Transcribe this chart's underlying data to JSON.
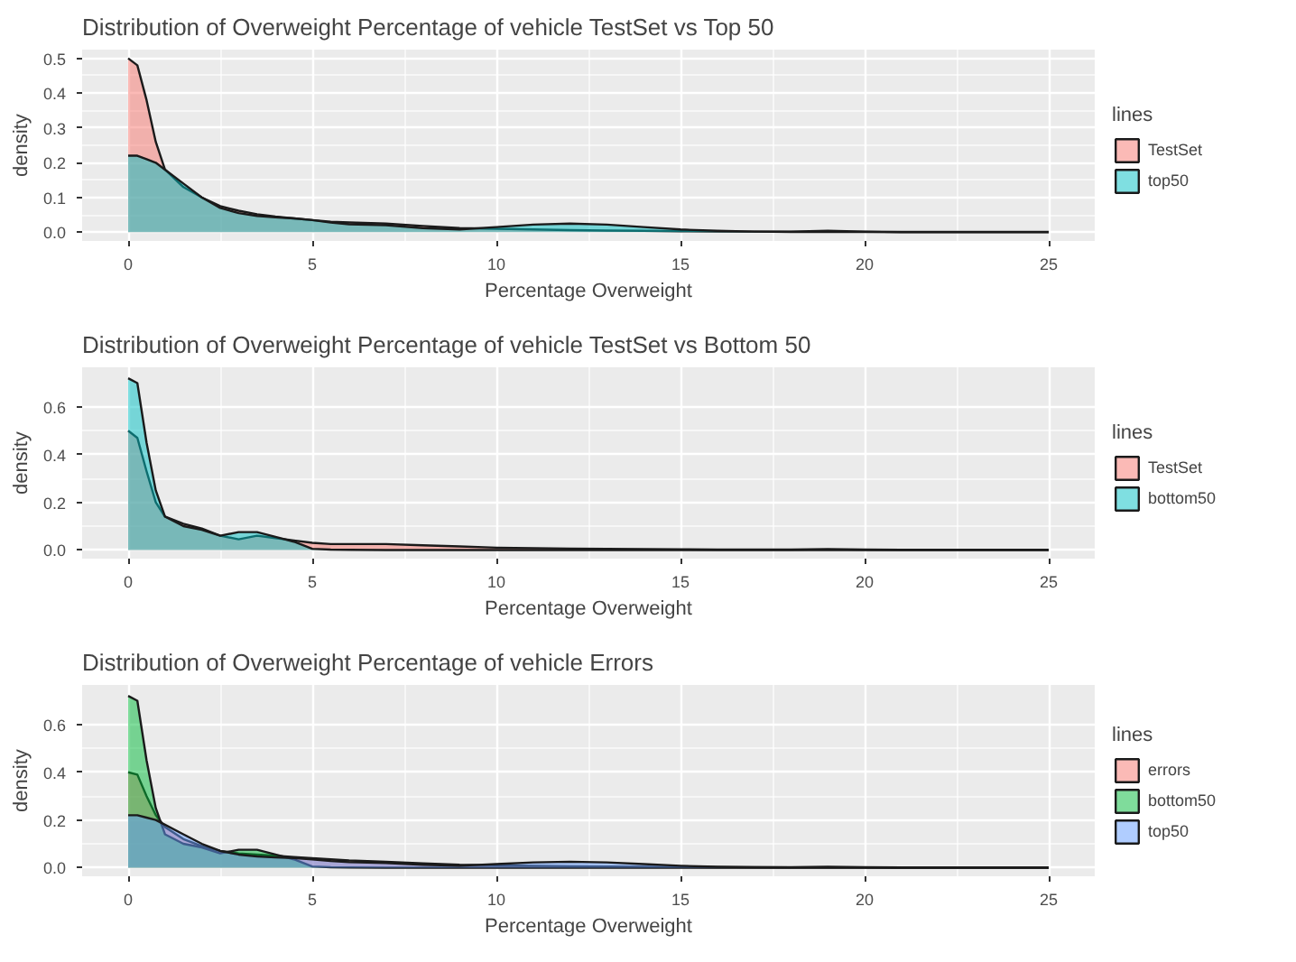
{
  "chart_data": [
    {
      "type": "area",
      "title": "Distribution of Overweight Percentage of vehicle TestSet vs Top 50",
      "xlabel": "Percentage Overweight",
      "ylabel": "density",
      "legend_title": "lines",
      "legend": "right",
      "grid": true,
      "x": [
        0,
        0.25,
        0.5,
        0.75,
        1,
        1.5,
        2,
        2.5,
        3,
        3.5,
        4,
        4.5,
        5,
        5.5,
        6,
        7,
        8,
        9,
        10,
        11,
        12,
        13,
        14,
        15,
        16,
        17,
        18,
        19,
        20,
        21,
        22,
        23,
        24,
        25
      ],
      "xlim": [
        -1.25,
        26.25
      ],
      "xticks": [
        0,
        5,
        10,
        15,
        20,
        25
      ],
      "ylim": [
        -0.025,
        0.525
      ],
      "yticks": [
        {
          "value": 0,
          "label": "0.0"
        },
        0.1,
        0.2,
        0.3,
        0.4,
        0.5
      ],
      "series": [
        {
          "name": "TestSet",
          "color": "#F8766D",
          "values": [
            0.5,
            0.48,
            0.38,
            0.26,
            0.18,
            0.13,
            0.1,
            0.075,
            0.062,
            0.052,
            0.045,
            0.04,
            0.035,
            0.03,
            0.028,
            0.025,
            0.018,
            0.012,
            0.01,
            0.008,
            0.006,
            0.005,
            0.004,
            0.003,
            0.002,
            0.002,
            0.002,
            0.004,
            0.002,
            0.001,
            0.001,
            0.001,
            0.001,
            0.001
          ]
        },
        {
          "name": "top50",
          "color": "#00BFC4",
          "values": [
            0.22,
            0.22,
            0.21,
            0.2,
            0.18,
            0.14,
            0.1,
            0.07,
            0.055,
            0.047,
            0.043,
            0.04,
            0.035,
            0.028,
            0.023,
            0.02,
            0.012,
            0.008,
            0.015,
            0.022,
            0.025,
            0.022,
            0.015,
            0.008,
            0.004,
            0.002,
            0.001,
            0.001,
            0.001,
            0,
            0,
            0,
            0,
            0
          ]
        }
      ]
    },
    {
      "type": "area",
      "title": "Distribution of Overweight Percentage of vehicle TestSet vs Bottom 50",
      "xlabel": "Percentage Overweight",
      "ylabel": "density",
      "legend_title": "lines",
      "legend": "right",
      "grid": true,
      "x": [
        0,
        0.25,
        0.5,
        0.75,
        1,
        1.5,
        2,
        2.5,
        3,
        3.5,
        4,
        4.5,
        5,
        5.5,
        6,
        7,
        8,
        9,
        10,
        11,
        12,
        13,
        14,
        15,
        16,
        17,
        18,
        19,
        20,
        21,
        22,
        23,
        24,
        25
      ],
      "xlim": [
        -1.25,
        26.25
      ],
      "xticks": [
        0,
        5,
        10,
        15,
        20,
        25
      ],
      "ylim": [
        -0.036,
        0.766
      ],
      "yticks": [
        {
          "value": 0,
          "label": "0.0"
        },
        {
          "value": 0.2,
          "label": "0.2"
        },
        {
          "value": 0.4,
          "label": "0.4"
        },
        {
          "value": 0.6,
          "label": "0.6"
        }
      ],
      "series": [
        {
          "name": "TestSet",
          "color": "#F8766D",
          "values": [
            0.5,
            0.47,
            0.33,
            0.2,
            0.14,
            0.11,
            0.09,
            0.06,
            0.045,
            0.06,
            0.05,
            0.04,
            0.03,
            0.025,
            0.025,
            0.025,
            0.02,
            0.015,
            0.01,
            0.008,
            0.006,
            0.005,
            0.004,
            0.003,
            0.002,
            0.002,
            0.002,
            0.004,
            0.002,
            0.001,
            0.001,
            0.001,
            0.001,
            0.001
          ]
        },
        {
          "name": "bottom50",
          "color": "#00BFC4",
          "values": [
            0.72,
            0.7,
            0.45,
            0.25,
            0.14,
            0.1,
            0.085,
            0.06,
            0.075,
            0.075,
            0.055,
            0.035,
            0.005,
            0.002,
            0.001,
            0,
            0,
            0,
            0,
            0,
            0,
            0,
            0,
            0,
            0,
            0,
            0,
            0,
            0,
            0,
            0,
            0,
            0,
            0
          ]
        }
      ]
    },
    {
      "type": "area",
      "title": "Distribution of Overweight Percentage of vehicle Errors",
      "xlabel": "Percentage Overweight",
      "ylabel": "density",
      "legend_title": "lines",
      "legend": "right",
      "grid": true,
      "x": [
        0,
        0.25,
        0.5,
        0.75,
        1,
        1.5,
        2,
        2.5,
        3,
        3.5,
        4,
        4.5,
        5,
        5.5,
        6,
        7,
        8,
        9,
        10,
        11,
        12,
        13,
        14,
        15,
        16,
        17,
        18,
        19,
        20,
        21,
        22,
        23,
        24,
        25
      ],
      "xlim": [
        -1.25,
        26.25
      ],
      "xticks": [
        0,
        5,
        10,
        15,
        20,
        25
      ],
      "ylim": [
        -0.036,
        0.766
      ],
      "yticks": [
        {
          "value": 0,
          "label": "0.0"
        },
        {
          "value": 0.2,
          "label": "0.2"
        },
        {
          "value": 0.4,
          "label": "0.4"
        },
        {
          "value": 0.6,
          "label": "0.6"
        }
      ],
      "series": [
        {
          "name": "errors",
          "color": "#F8766D",
          "values": [
            0.4,
            0.39,
            0.3,
            0.22,
            0.17,
            0.12,
            0.09,
            0.07,
            0.06,
            0.055,
            0.05,
            0.045,
            0.04,
            0.035,
            0.03,
            0.025,
            0.018,
            0.012,
            0.01,
            0.008,
            0.006,
            0.005,
            0.004,
            0.003,
            0.002,
            0.002,
            0.002,
            0.004,
            0.002,
            0.001,
            0.001,
            0.001,
            0.001,
            0.001
          ]
        },
        {
          "name": "bottom50",
          "color": "#00BA38",
          "values": [
            0.72,
            0.7,
            0.45,
            0.25,
            0.14,
            0.1,
            0.085,
            0.06,
            0.075,
            0.075,
            0.055,
            0.035,
            0.005,
            0.002,
            0.001,
            0,
            0,
            0,
            0,
            0,
            0,
            0,
            0,
            0,
            0,
            0,
            0,
            0,
            0,
            0,
            0,
            0,
            0,
            0
          ]
        },
        {
          "name": "top50",
          "color": "#619CFF",
          "values": [
            0.22,
            0.22,
            0.21,
            0.2,
            0.18,
            0.14,
            0.1,
            0.07,
            0.055,
            0.047,
            0.043,
            0.04,
            0.035,
            0.028,
            0.023,
            0.02,
            0.012,
            0.008,
            0.015,
            0.022,
            0.025,
            0.022,
            0.015,
            0.008,
            0.004,
            0.002,
            0.001,
            0.001,
            0.001,
            0,
            0,
            0,
            0,
            0
          ]
        }
      ]
    }
  ]
}
